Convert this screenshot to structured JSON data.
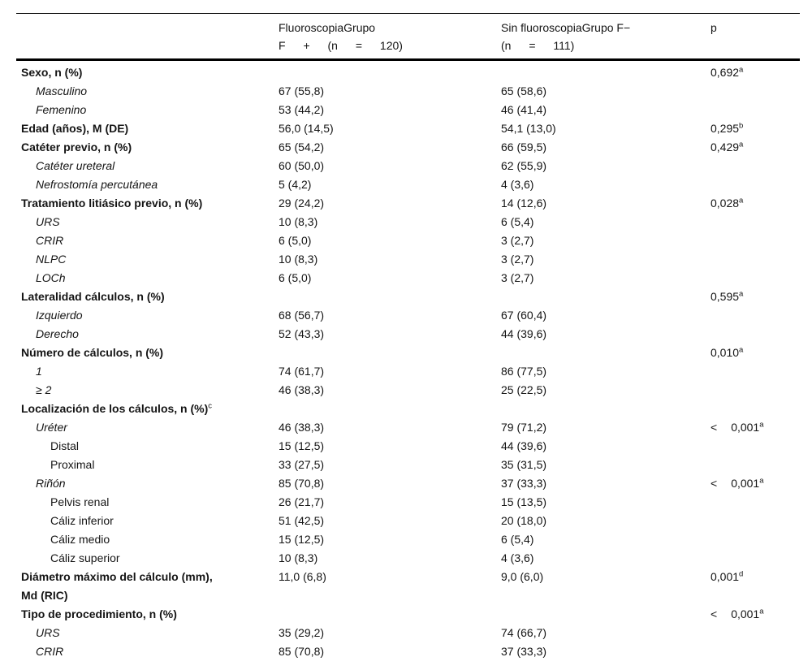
{
  "colors": {
    "text": "#141414",
    "rule": "#000000",
    "background": "#ffffff"
  },
  "table": {
    "header": {
      "col1": "",
      "col2_line1": "FluoroscopiaGrupo",
      "col2_line2": "F + (n = 120)",
      "col3_line1": "Sin fluoroscopiaGrupo F−",
      "col3_line2": "(n = 111)",
      "p_label": "p"
    },
    "columns": [
      "",
      "Fluoroscopia Grupo F + (n = 120)",
      "Sin fluoroscopia Grupo F− (n = 111)",
      "p"
    ],
    "rows": [
      {
        "label": "Sexo, n (%)",
        "style": "bold",
        "indent": 0,
        "c2": "",
        "c3": "",
        "p": "0,692",
        "p_sup": "a"
      },
      {
        "label": "Masculino",
        "style": "italic",
        "indent": 1,
        "c2": "67 (55,8)",
        "c3": "65 (58,6)"
      },
      {
        "label": "Femenino",
        "style": "italic",
        "indent": 1,
        "c2": "53 (44,2)",
        "c3": "46 (41,4)"
      },
      {
        "label": "Edad (años), M (DE)",
        "style": "bold",
        "indent": 0,
        "c2": "56,0 (14,5)",
        "c3": "54,1 (13,0)",
        "p": "0,295",
        "p_sup": "b"
      },
      {
        "label": "Catéter previo, n (%)",
        "style": "bold",
        "indent": 0,
        "c2": "65 (54,2)",
        "c3": "66 (59,5)",
        "p": "0,429",
        "p_sup": "a"
      },
      {
        "label": "Catéter ureteral",
        "style": "italic",
        "indent": 1,
        "c2": "60 (50,0)",
        "c3": "62 (55,9)"
      },
      {
        "label": "Nefrostomía percutánea",
        "style": "italic",
        "indent": 1,
        "c2": "5 (4,2)",
        "c3": "4 (3,6)"
      },
      {
        "label": "Tratamiento litiásico previo, n (%)",
        "style": "bold",
        "indent": 0,
        "c2": "29 (24,2)",
        "c3": "14 (12,6)",
        "p": "0,028",
        "p_sup": "a"
      },
      {
        "label": "URS",
        "style": "italic",
        "indent": 1,
        "c2": "10 (8,3)",
        "c3": "6 (5,4)"
      },
      {
        "label": "CRIR",
        "style": "italic",
        "indent": 1,
        "c2": "6 (5,0)",
        "c3": "3 (2,7)"
      },
      {
        "label": "NLPC",
        "style": "italic",
        "indent": 1,
        "c2": "10 (8,3)",
        "c3": "3 (2,7)"
      },
      {
        "label": "LOCh",
        "style": "italic",
        "indent": 1,
        "c2": "6 (5,0)",
        "c3": "3 (2,7)"
      },
      {
        "label": "Lateralidad cálculos, n (%)",
        "style": "bold",
        "indent": 0,
        "c2": "",
        "c3": "",
        "p": "0,595",
        "p_sup": "a"
      },
      {
        "label": "Izquierdo",
        "style": "italic",
        "indent": 1,
        "c2": "68 (56,7)",
        "c3": "67 (60,4)"
      },
      {
        "label": "Derecho",
        "style": "italic",
        "indent": 1,
        "c2": "52 (43,3)",
        "c3": "44 (39,6)"
      },
      {
        "label": "Número de cálculos, n (%)",
        "style": "bold",
        "indent": 0,
        "c2": "",
        "c3": "",
        "p": "0,010",
        "p_sup": "a"
      },
      {
        "label": "1",
        "style": "italic",
        "indent": 1,
        "c2": "74 (61,7)",
        "c3": "86 (77,5)"
      },
      {
        "label": "≥ 2",
        "style": "italic",
        "indent": 1,
        "c2": "46 (38,3)",
        "c3": "25 (22,5)"
      },
      {
        "label": "Localización de los cálculos, n (%)",
        "sup": "c",
        "style": "bold",
        "indent": 0,
        "c2": "",
        "c3": ""
      },
      {
        "label": "Uréter",
        "style": "italic",
        "indent": 1,
        "c2": "46 (38,3)",
        "c3": "79 (71,2)",
        "p_prefix": "<",
        "p": "0,001",
        "p_sup": "a"
      },
      {
        "label": "Distal",
        "style": "plain",
        "indent": 2,
        "c2": "15 (12,5)",
        "c3": "44 (39,6)"
      },
      {
        "label": "Proximal",
        "style": "plain",
        "indent": 2,
        "c2": "33 (27,5)",
        "c3": "35 (31,5)"
      },
      {
        "label": "Riñón",
        "style": "italic",
        "indent": 1,
        "c2": "85 (70,8)",
        "c3": "37 (33,3)",
        "p_prefix": "<",
        "p": "0,001",
        "p_sup": "a"
      },
      {
        "label": "Pelvis renal",
        "style": "plain",
        "indent": 2,
        "c2": "26 (21,7)",
        "c3": "15 (13,5)"
      },
      {
        "label": "Cáliz inferior",
        "style": "plain",
        "indent": 2,
        "c2": "51 (42,5)",
        "c3": "20 (18,0)"
      },
      {
        "label": "Cáliz medio",
        "style": "plain",
        "indent": 2,
        "c2": "15 (12,5)",
        "c3": "6 (5,4)"
      },
      {
        "label": "Cáliz superior",
        "style": "plain",
        "indent": 2,
        "c2": "10 (8,3)",
        "c3": "4 (3,6)"
      },
      {
        "label": "Diámetro máximo del cálculo (mm),",
        "label2": "Md (RIC)",
        "style": "bold",
        "indent": 0,
        "c2": "11,0 (6,8)",
        "c3": "9,0 (6,0)",
        "p": "0,001",
        "p_sup": "d"
      },
      {
        "label": "Tipo de procedimiento, n (%)",
        "style": "bold",
        "indent": 0,
        "c2": "",
        "c3": "",
        "p_prefix": "<",
        "p": "0,001",
        "p_sup": "a"
      },
      {
        "label": "URS",
        "style": "italic",
        "indent": 1,
        "c2": "35 (29,2)",
        "c3": "74 (66,7)"
      },
      {
        "label": "CRIR",
        "style": "italic",
        "indent": 1,
        "c2": "85 (70,8)",
        "c3": "37 (33,3)"
      }
    ]
  }
}
